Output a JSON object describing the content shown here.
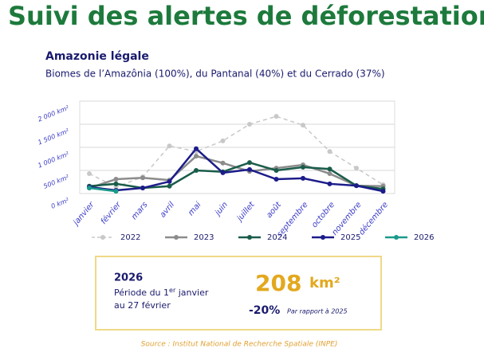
{
  "header": {
    "title": "Suivi des alertes de déforestation",
    "subtitle": "Amazonie légale",
    "description": "Biomes de l’Amazônia (100%), du Pantanal (40%) et du Cerrado (37%)"
  },
  "chart_data": {
    "type": "line",
    "categories": [
      "janvier",
      "février",
      "mars",
      "avril",
      "mai",
      "juin",
      "juillet",
      "août",
      "septembre",
      "octobre",
      "novembre",
      "décembre"
    ],
    "series": [
      {
        "name": "2022",
        "color": "#c8c8c8",
        "style": "dashed",
        "values": [
          430,
          140,
          360,
          1030,
          910,
          1140,
          1500,
          1670,
          1480,
          910,
          550,
          190
        ]
      },
      {
        "name": "2023",
        "color": "#8c8c8c",
        "style": "solid",
        "values": [
          120,
          310,
          340,
          290,
          810,
          660,
          480,
          550,
          620,
          430,
          170,
          160
        ]
      },
      {
        "name": "2024",
        "color": "#1a5c4a",
        "style": "solid",
        "values": [
          160,
          210,
          120,
          160,
          500,
          470,
          670,
          500,
          570,
          530,
          170,
          100
        ]
      },
      {
        "name": "2025",
        "color": "#1c1c8a",
        "style": "solid",
        "values": [
          140,
          70,
          120,
          260,
          970,
          450,
          520,
          310,
          330,
          210,
          170,
          50
        ]
      },
      {
        "name": "2026",
        "color": "#1a9a8a",
        "style": "solid",
        "values": [
          120,
          50,
          null,
          null,
          null,
          null,
          null,
          null,
          null,
          null,
          null,
          null
        ]
      }
    ],
    "ylim": [
      0,
      2000
    ],
    "yticks": [
      {
        "value": 0,
        "label": "0 km²"
      },
      {
        "value": 500,
        "label": "500 km²"
      },
      {
        "value": 1000,
        "label": "1 000 km²"
      },
      {
        "value": 1500,
        "label": "1 500 km²"
      },
      {
        "value": 2000,
        "label": "2 000 km²"
      }
    ],
    "grid": true,
    "legend": "bottom"
  },
  "summary": {
    "year": "2026",
    "period_start": "Période du 1",
    "period_sup": "er",
    "period_end": " janvier",
    "period_line2": "au 27 février",
    "value": "208",
    "unit": "km²",
    "change": "-20%",
    "change_note": "Par rapport à 2025"
  },
  "source": "Source : Institut National de Recherche Spatiale (INPE)"
}
